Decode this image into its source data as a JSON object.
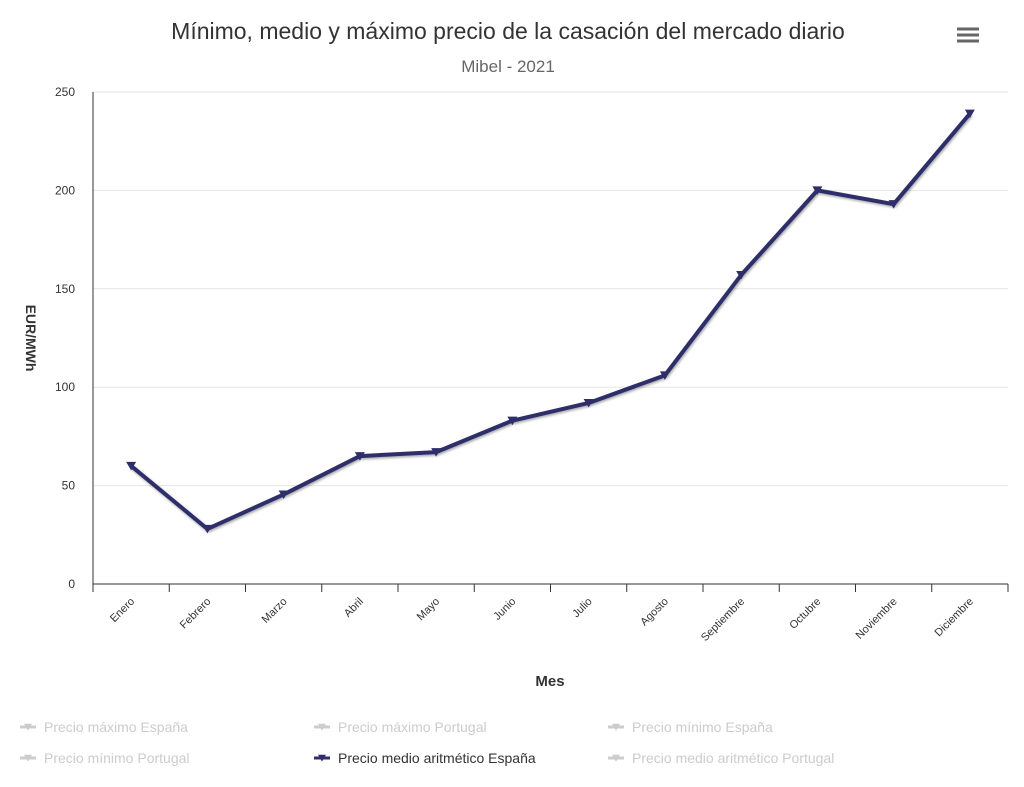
{
  "chart_data": {
    "type": "line",
    "title": "Mínimo, medio y máximo precio de la casación del mercado diario",
    "subtitle": "Mibel - 2021",
    "y_label": "EUR/MWh",
    "x_label": "Mes",
    "categories": [
      "Enero",
      "Febrero",
      "Marzo",
      "Abril",
      "Mayo",
      "Junio",
      "Julio",
      "Agosto",
      "Septiembre",
      "Octubre",
      "Noviembre",
      "Diciembre"
    ],
    "series": [
      {
        "name": "Precio medio aritmético España",
        "color": "#2f2e6b",
        "values": [
          60,
          28,
          45.5,
          65,
          67,
          83,
          92,
          106,
          157,
          200,
          193,
          239
        ]
      }
    ],
    "hidden_series": [
      "Precio máximo España",
      "Precio máximo Portugal",
      "Precio mínimo España",
      "Precio mínimo Portugal",
      "Precio medio aritmético Portugal"
    ],
    "legend_order": [
      "hidden_series.0",
      "hidden_series.1",
      "hidden_series.2",
      "hidden_series.3",
      "series.0.name",
      "hidden_series.4"
    ],
    "hidden_color": "#cccccc",
    "ylim": [
      0,
      250
    ],
    "yticks": [
      0,
      50,
      100,
      150,
      200,
      250
    ],
    "grid": true
  }
}
